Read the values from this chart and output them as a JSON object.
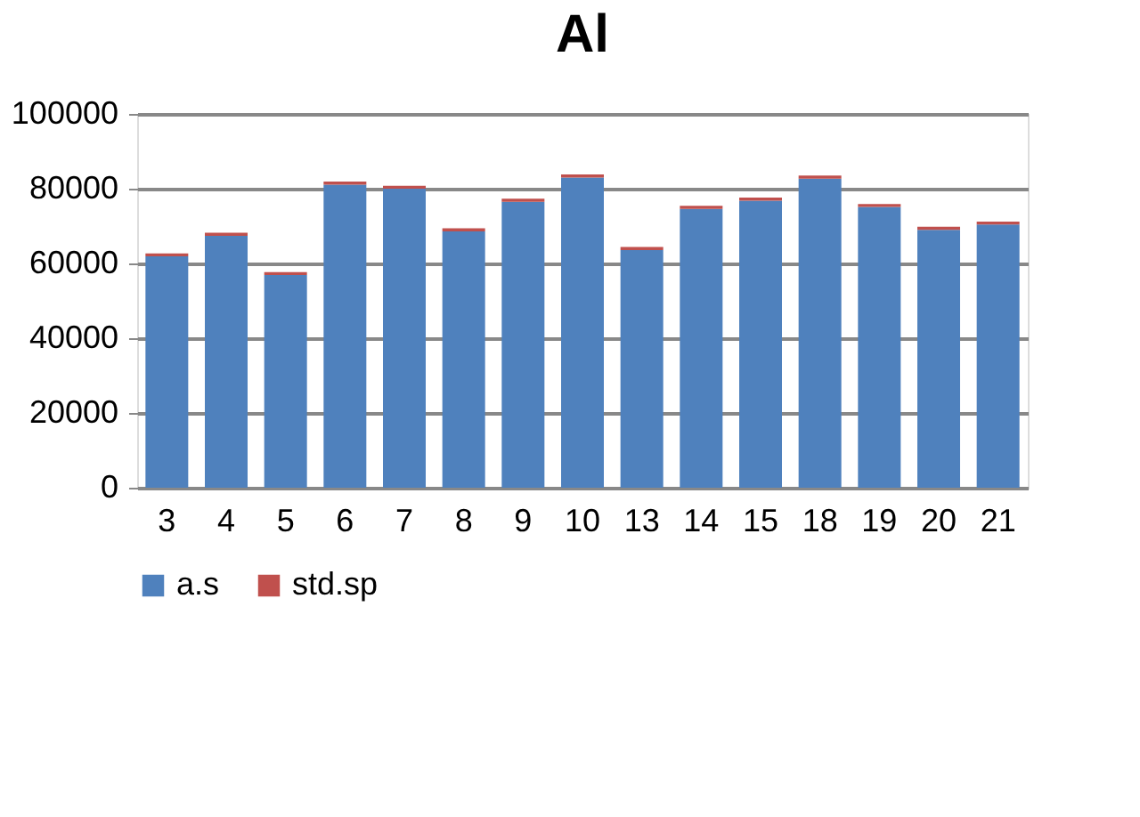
{
  "chart_data": {
    "type": "bar",
    "title": "Al",
    "stacked": true,
    "categories": [
      "3",
      "4",
      "5",
      "6",
      "7",
      "8",
      "9",
      "10",
      "13",
      "14",
      "15",
      "18",
      "19",
      "20",
      "21"
    ],
    "series": [
      {
        "name": "a.s",
        "color": "#4f81bd",
        "values": [
          61900,
          67400,
          56900,
          81100,
          80000,
          68600,
          76500,
          83000,
          63600,
          74600,
          76800,
          82700,
          75100,
          69000,
          70400
        ]
      },
      {
        "name": "std.sp",
        "color": "#c0504d",
        "values": [
          800,
          800,
          800,
          800,
          800,
          800,
          800,
          800,
          800,
          800,
          800,
          800,
          800,
          800,
          800
        ]
      }
    ],
    "ylim": [
      0,
      100000
    ],
    "yticks": [
      0,
      20000,
      40000,
      60000,
      80000,
      100000
    ],
    "grid": "y",
    "legend": "bottom"
  }
}
